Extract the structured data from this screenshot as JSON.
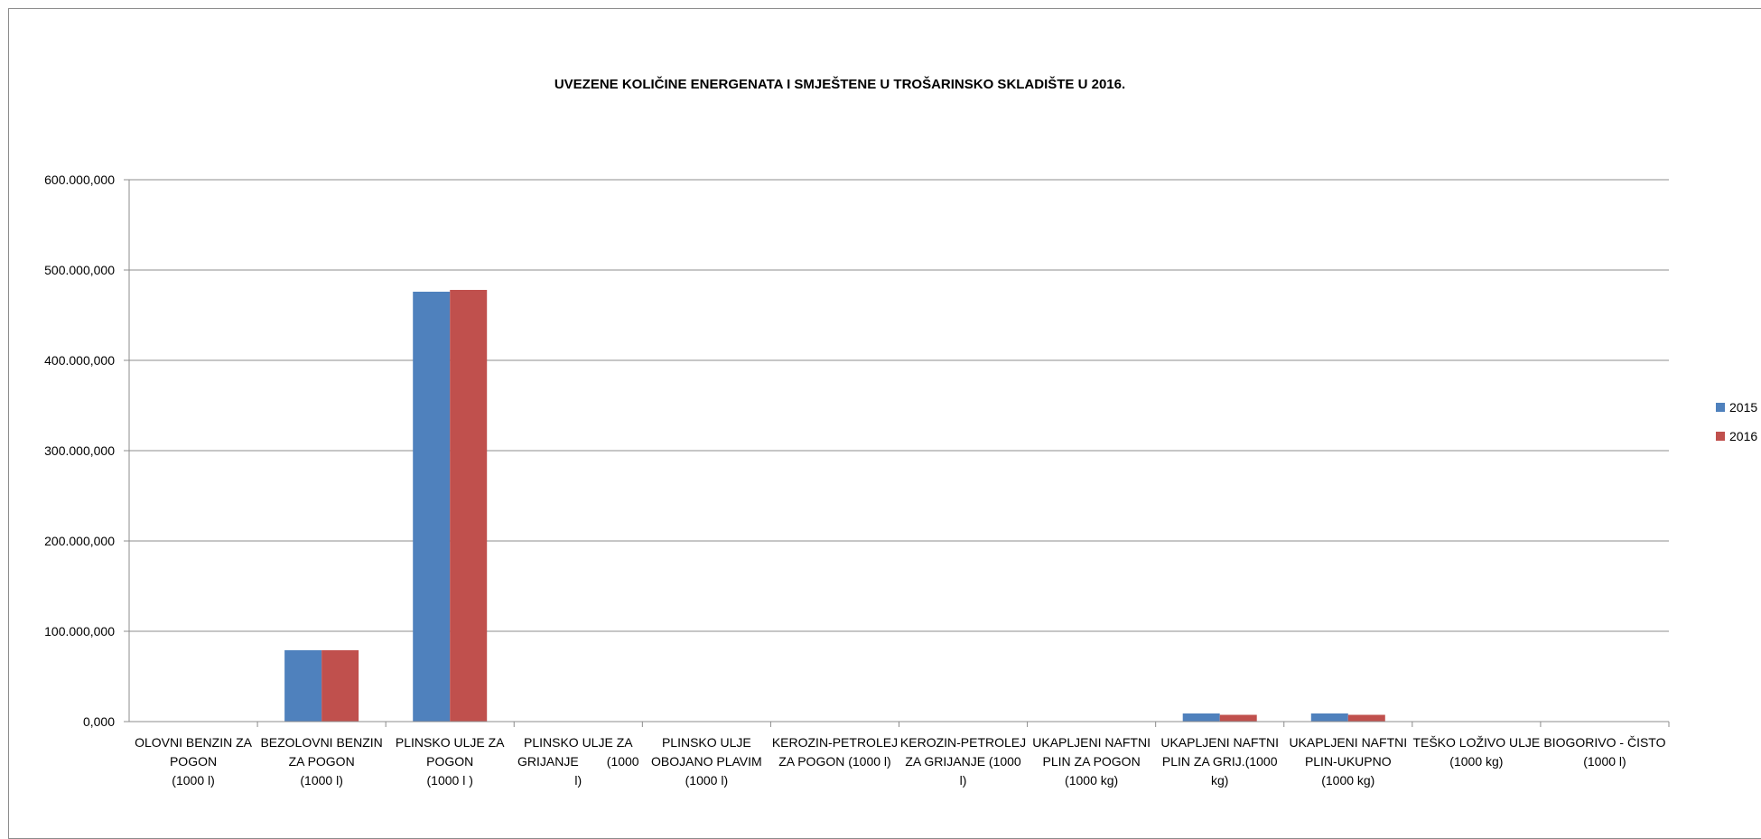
{
  "chart_data": {
    "type": "bar",
    "title": "UVEZENE KOLIČINE ENERGENATA I SMJEŠTENE U TROŠARINSKO SKLADIŠTE U 2016.",
    "xlabel": "",
    "ylabel": "",
    "ylim": [
      0,
      600000000
    ],
    "yticks": [
      {
        "value": 0,
        "label": "0,000"
      },
      {
        "value": 100000000,
        "label": "100.000,000"
      },
      {
        "value": 200000000,
        "label": "200.000,000"
      },
      {
        "value": 300000000,
        "label": "300.000,000"
      },
      {
        "value": 400000000,
        "label": "400.000,000"
      },
      {
        "value": 500000000,
        "label": "500.000,000"
      },
      {
        "value": 600000000,
        "label": "600.000,000"
      }
    ],
    "grid": true,
    "legend_position": "right",
    "categories": [
      [
        "OLOVNI BENZIN ZA",
        "POGON",
        "(1000 l)"
      ],
      [
        "BEZOLOVNI BENZIN",
        "ZA POGON",
        "(1000 l)"
      ],
      [
        "PLINSKO ULJE ZA",
        "POGON",
        "(1000 l )"
      ],
      [
        "PLINSKO ULJE ZA",
        "GRIJANJE        (1000",
        "l)"
      ],
      [
        "PLINSKO ULJE",
        "OBOJANO PLAVIM",
        "(1000 l)"
      ],
      [
        "KEROZIN-PETROLEJ",
        "ZA POGON (1000 l)"
      ],
      [
        "KEROZIN-PETROLEJ",
        "ZA GRIJANJE (1000",
        "l)"
      ],
      [
        "UKAPLJENI NAFTNI",
        "PLIN ZA POGON",
        "(1000 kg)"
      ],
      [
        "UKAPLJENI NAFTNI",
        "PLIN ZA GRIJ.(1000",
        "kg)"
      ],
      [
        "UKAPLJENI NAFTNI",
        "PLIN-UKUPNO",
        "(1000 kg)"
      ],
      [
        "TEŠKO LOŽIVO ULJE",
        "(1000 kg)"
      ],
      [
        "BIOGORIVO - ČISTO",
        "(1000 l)"
      ]
    ],
    "series": [
      {
        "name": "2015",
        "color": "#4f81bd",
        "values": [
          0,
          79000000,
          476000000,
          0,
          0,
          0,
          0,
          0,
          9000000,
          9000000,
          0,
          0
        ]
      },
      {
        "name": "2016",
        "color": "#c0504d",
        "values": [
          0,
          79000000,
          478000000,
          0,
          0,
          0,
          0,
          0,
          7500000,
          7500000,
          0,
          0
        ]
      }
    ]
  }
}
